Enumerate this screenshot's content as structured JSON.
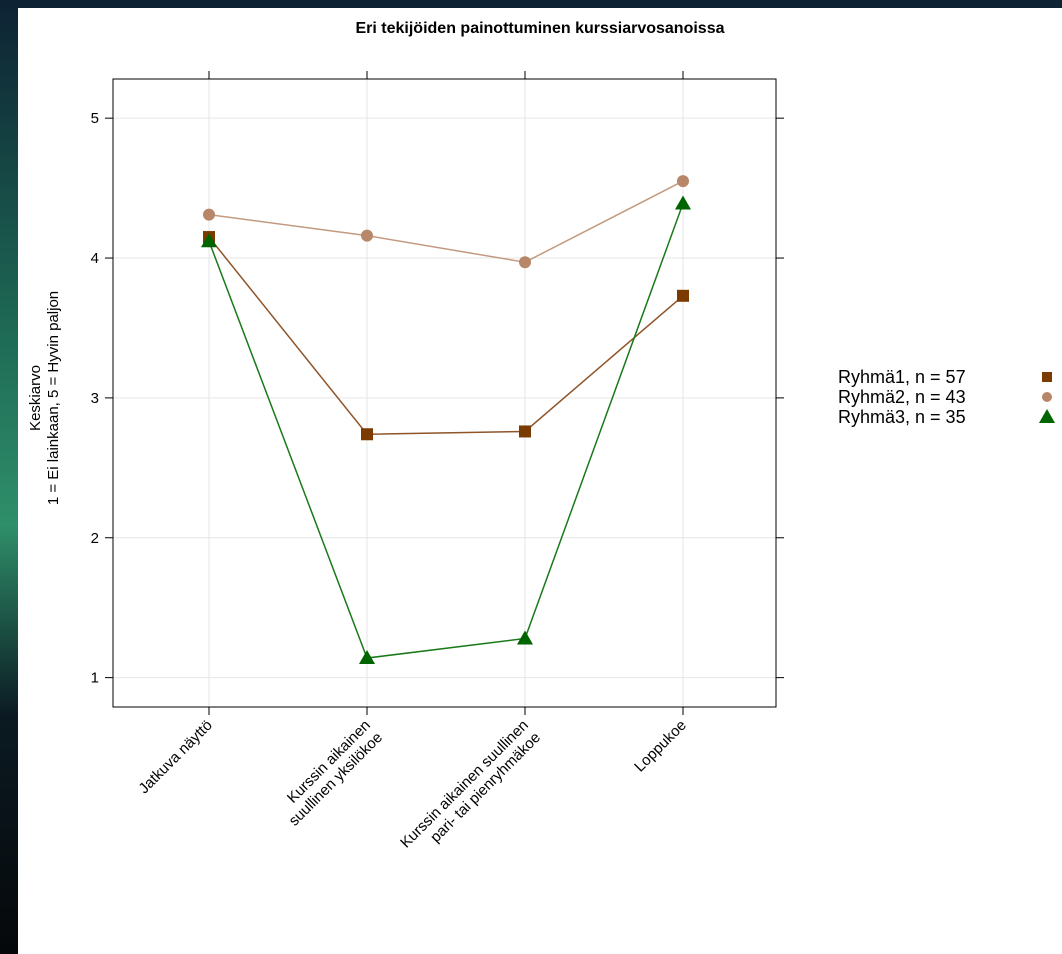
{
  "chart_data": {
    "type": "line",
    "title": "Eri tekijöiden painottuminen kurssiarvosanoissa",
    "y_label": [
      "Keskiarvo",
      "1 = Ei lainkaan, 5 = Hyvin paljon"
    ],
    "categories": [
      "Jatkuva näyttö",
      "Kurssin aikainen\nsuullinen yksilökoe",
      "Kurssin aikainen suullinen\npari- tai pienryhmäkoe",
      "Loppukoe"
    ],
    "series": [
      {
        "name": "Ryhmä1, n = 57",
        "color": "#7a3a00",
        "line_color": "#8f5428",
        "marker": "square",
        "values": [
          4.15,
          2.74,
          2.76,
          3.73
        ]
      },
      {
        "name": "Ryhmä2, n = 43",
        "color": "#b8876a",
        "line_color": "#c29a80",
        "marker": "circle",
        "values": [
          4.31,
          4.16,
          3.97,
          4.55
        ]
      },
      {
        "name": "Ryhmä3, n = 35",
        "color": "#006400",
        "line_color": "#1a7a1a",
        "marker": "triangle",
        "values": [
          4.12,
          1.14,
          1.28,
          4.39
        ]
      }
    ],
    "ylim": [
      0.79,
      5.28
    ],
    "yticks": [
      1,
      2,
      3,
      4,
      5
    ],
    "grid": true,
    "legend": "right"
  }
}
